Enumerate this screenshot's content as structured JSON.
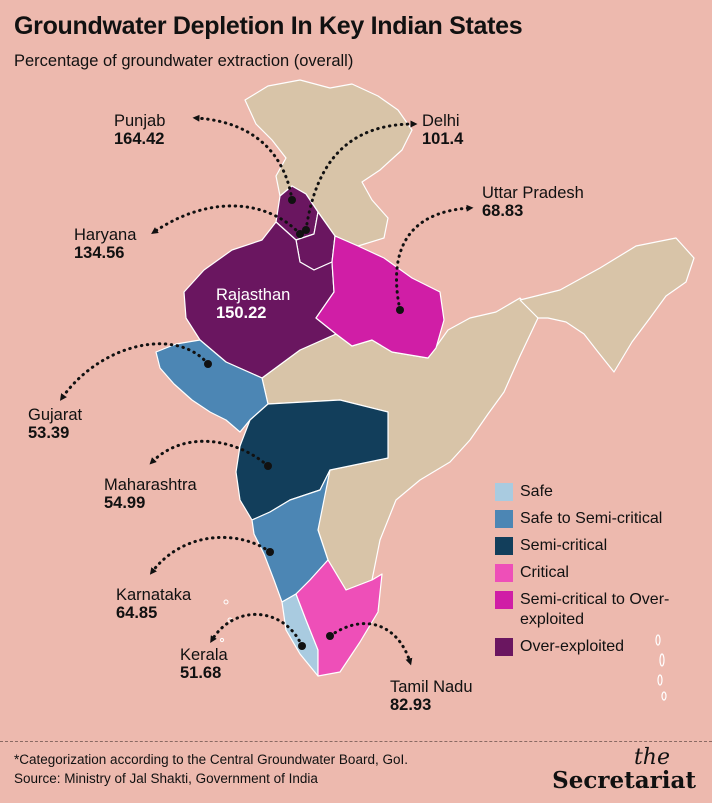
{
  "header": {
    "title": "Groundwater Depletion In Key Indian States",
    "subtitle": "Percentage of groundwater extraction (overall)"
  },
  "colors": {
    "background": "#EDB9AE",
    "base_land": "#D8C4A8",
    "safe": "#A9CBE0",
    "safe_to_semi_critical": "#4C86B4",
    "semi_critical": "#123E5B",
    "critical": "#EE4FB8",
    "semi_critical_to_over_exploited": "#D01EA6",
    "over_exploited": "#6A1660"
  },
  "states": [
    {
      "name": "Punjab",
      "value": "164.42",
      "category": "Over-exploited"
    },
    {
      "name": "Delhi",
      "value": "101.4",
      "category": "Over-exploited"
    },
    {
      "name": "Uttar Pradesh",
      "value": "68.83",
      "category": "Semi-critical to Over-exploited"
    },
    {
      "name": "Haryana",
      "value": "134.56",
      "category": "Over-exploited"
    },
    {
      "name": "Rajasthan",
      "value": "150.22",
      "category": "Over-exploited"
    },
    {
      "name": "Gujarat",
      "value": "53.39",
      "category": "Safe to Semi-critical"
    },
    {
      "name": "Maharashtra",
      "value": "54.99",
      "category": "Semi-critical"
    },
    {
      "name": "Karnataka",
      "value": "64.85",
      "category": "Safe to Semi-critical"
    },
    {
      "name": "Kerala",
      "value": "51.68",
      "category": "Safe"
    },
    {
      "name": "Tamil Nadu",
      "value": "82.93",
      "category": "Critical"
    }
  ],
  "legend": [
    {
      "label": "Safe",
      "color": "#A9CBE0"
    },
    {
      "label": "Safe to Semi-critical",
      "color": "#4C86B4"
    },
    {
      "label": "Semi-critical",
      "color": "#123E5B"
    },
    {
      "label": "Critical",
      "color": "#EE4FB8"
    },
    {
      "label": "Semi-critical to Over-exploited",
      "color": "#D01EA6"
    },
    {
      "label": "Over-exploited",
      "color": "#6A1660"
    }
  ],
  "footer": {
    "note": "*Categorization according to the Central Groundwater Board, GoI.",
    "source": "Source: Ministry of Jal Shakti, Government of India",
    "brand_the": "the",
    "brand_name": "Secretariat"
  }
}
